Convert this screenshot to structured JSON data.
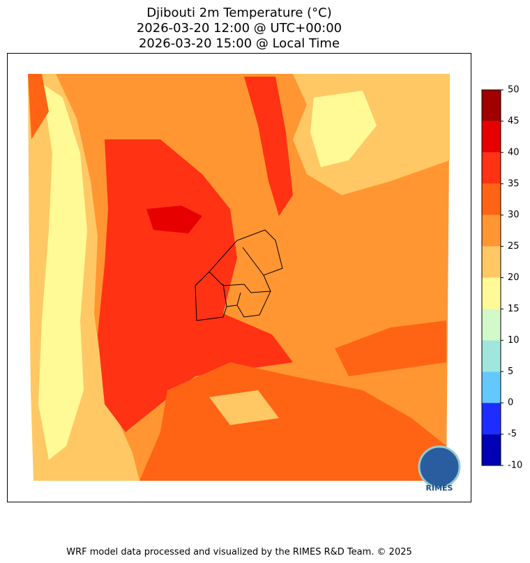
{
  "title": [
    "Djibouti 2m Temperature (°C)",
    "2026-03-20 12:00 @ UTC+00:00",
    "2026-03-20 15:00 @ Local Time"
  ],
  "colorbar": {
    "ticks": [
      -10,
      -5,
      0,
      5,
      10,
      15,
      20,
      25,
      30,
      35,
      40,
      45,
      50
    ],
    "colors": [
      "#0000b4",
      "#1e2dff",
      "#64c8ff",
      "#a0e6dc",
      "#d2fac8",
      "#fffa96",
      "#ffc864",
      "#ff9632",
      "#ff6414",
      "#ff3214",
      "#e60000",
      "#a00000"
    ]
  },
  "logo": "RIMES",
  "footer": "WRF model data processed and visualized by the RIMES R&D Team. © 2025"
}
